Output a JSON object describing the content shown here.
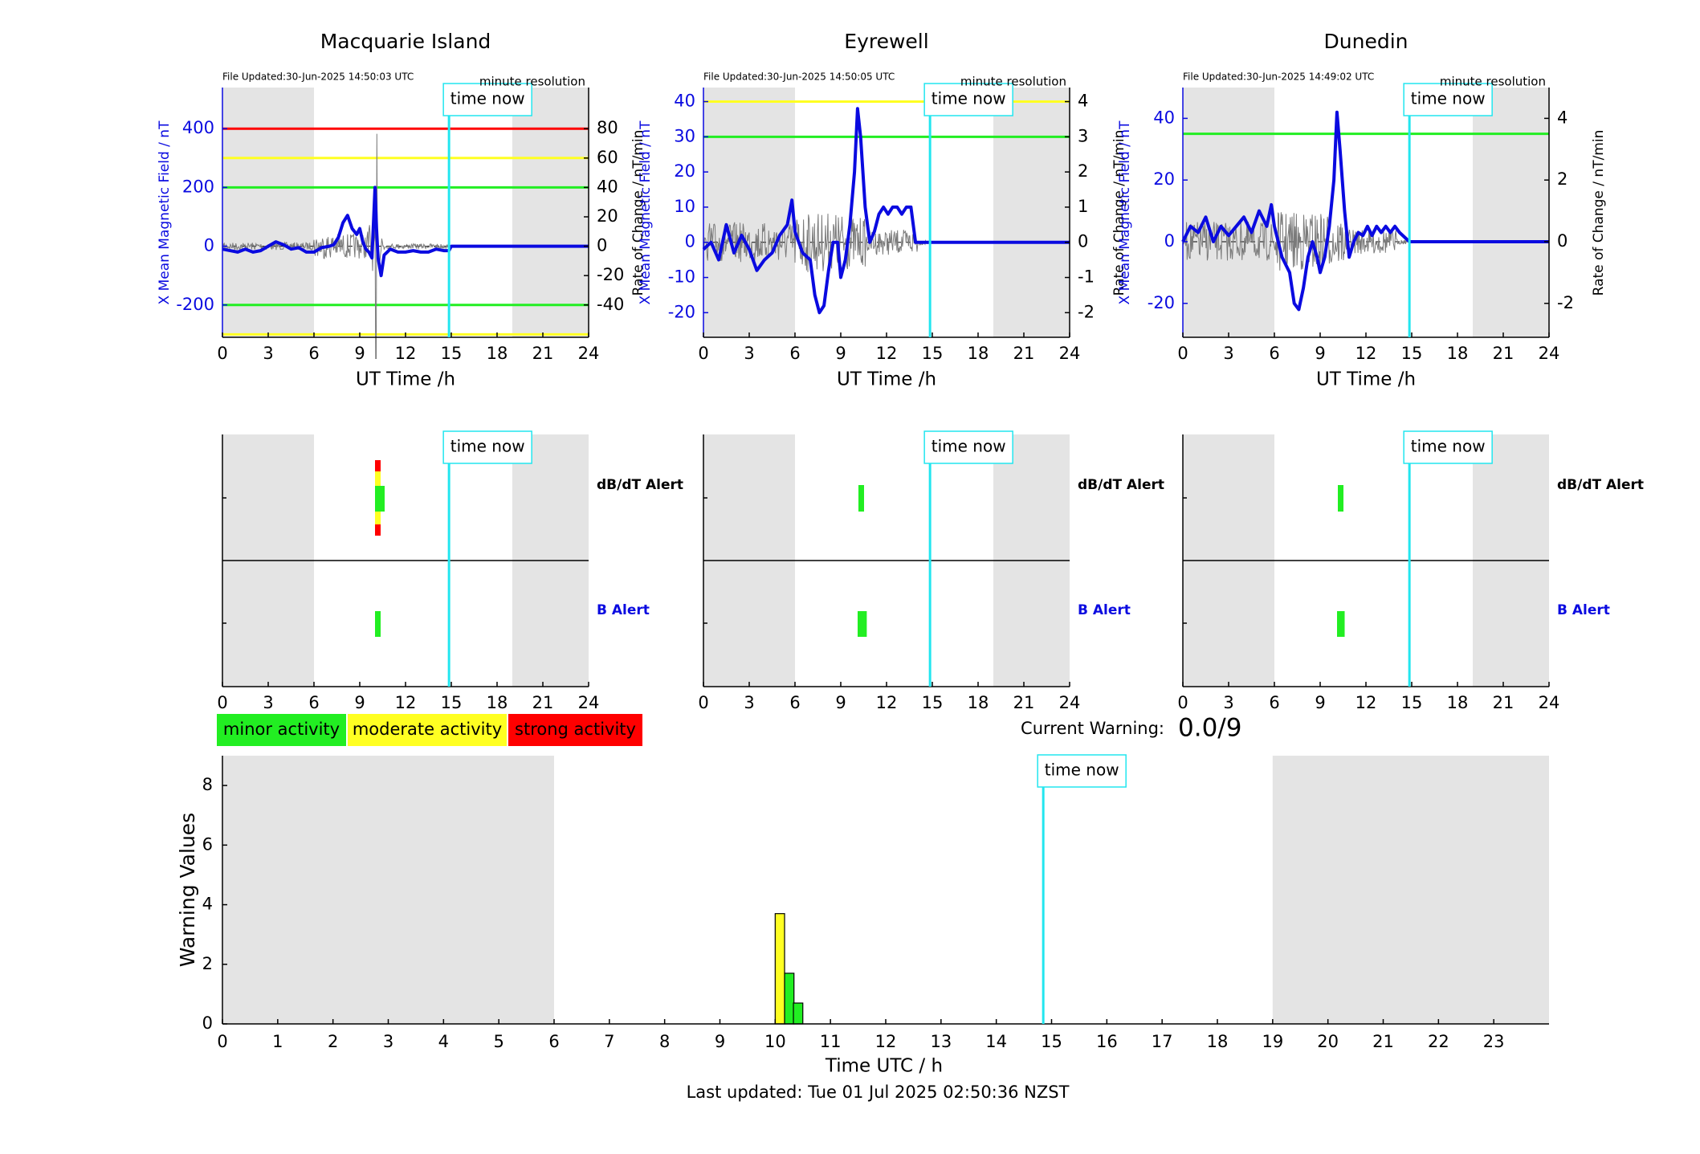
{
  "colors": {
    "blue": "#0a0ae0",
    "cyan": "#22e6ef",
    "red": "#ff0000",
    "yellow": "#ffff22",
    "green": "#22ee22",
    "night": "#e4e4e4",
    "trace": "#7a7a7a"
  },
  "labels": {
    "time_now": "time now",
    "ut_axis": "UT Time /h",
    "y_left": "X Mean Magnetic Field / nT",
    "y_right": "Rate of Change / nT/min",
    "minute_res": "minute resolution",
    "dbdt_alert": "dB/dT Alert",
    "b_alert": "B Alert",
    "current_warning_label": "Current Warning:",
    "current_warning_value": "0.0/9",
    "warning_ylabel": "Warning Values",
    "warning_xlabel": "Time UTC / h",
    "last_updated": "Last updated: Tue 01 Jul 2025 02:50:36 NZST"
  },
  "legend": [
    {
      "label": "minor activity",
      "color": "#22ee22"
    },
    {
      "label": "moderate activity",
      "color": "#ffff22"
    },
    {
      "label": "strong activity",
      "color": "#ff0000"
    }
  ],
  "chart_data": [
    {
      "type": "line",
      "title": "Macquarie Island",
      "file_updated": "File Updated:30-Jun-2025 14:50:03 UTC",
      "xlabel": "UT Time /h",
      "ylabel": "X Mean Magnetic Field / nT",
      "ylabel_right": "Rate of Change / nT/min",
      "xlim": [
        0,
        24
      ],
      "ylim": [
        -310,
        540
      ],
      "ylim_right": [
        -62,
        108
      ],
      "x_ticks": [
        0,
        3,
        6,
        9,
        12,
        15,
        18,
        21,
        24
      ],
      "y_ticks": [
        -200,
        0,
        200,
        400
      ],
      "y_ticks_right": [
        -40,
        -20,
        0,
        20,
        40,
        60,
        80
      ],
      "night_spans": [
        [
          0,
          6
        ],
        [
          19,
          24
        ]
      ],
      "time_now": 14.85,
      "thresholds": [
        {
          "value": 400,
          "color": "#ff0000"
        },
        {
          "value": 300,
          "color": "#ffff22"
        },
        {
          "value": 200,
          "color": "#22ee22"
        },
        {
          "value": -200,
          "color": "#22ee22"
        },
        {
          "value": -300,
          "color": "#ffff22"
        }
      ],
      "series": [
        {
          "x": [
            0,
            0.5,
            1,
            1.5,
            2,
            2.5,
            3,
            3.5,
            4,
            4.5,
            5,
            5.5,
            6,
            6.5,
            7,
            7.3,
            7.6,
            7.9,
            8.2,
            8.5,
            8.8,
            9.0,
            9.2,
            9.4,
            9.6,
            9.8,
            10.0,
            10.1,
            10.2,
            10.4,
            10.6,
            10.8,
            11.0,
            11.5,
            12,
            12.5,
            13,
            13.5,
            14,
            14.5,
            14.85,
            15,
            18,
            21,
            24
          ],
          "y": [
            -10,
            -15,
            -20,
            -10,
            -20,
            -15,
            0,
            15,
            5,
            -10,
            -5,
            -20,
            -20,
            -5,
            0,
            5,
            30,
            80,
            105,
            60,
            40,
            60,
            15,
            -10,
            -20,
            -40,
            200,
            60,
            -40,
            -100,
            -30,
            -20,
            -10,
            -20,
            -20,
            -15,
            -20,
            -20,
            -10,
            -15,
            -15,
            0,
            0,
            0,
            0
          ]
        }
      ],
      "rate_of_change_trace": true
    },
    {
      "type": "line",
      "title": "Eyrewell",
      "file_updated": "File Updated:30-Jun-2025 14:50:05 UTC",
      "xlabel": "UT Time /h",
      "ylabel": "X Mean Magnetic Field / nT",
      "ylabel_right": "Rate of Change / nT/min",
      "xlim": [
        0,
        24
      ],
      "ylim": [
        -27,
        44
      ],
      "ylim_right": [
        -2.7,
        4.4
      ],
      "x_ticks": [
        0,
        3,
        6,
        9,
        12,
        15,
        18,
        21,
        24
      ],
      "y_ticks": [
        -20,
        -10,
        0,
        10,
        20,
        30,
        40
      ],
      "y_ticks_right": [
        -2,
        -1,
        0,
        1,
        2,
        3,
        4
      ],
      "night_spans": [
        [
          0,
          6
        ],
        [
          19,
          24
        ]
      ],
      "time_now": 14.85,
      "thresholds": [
        {
          "value": 40,
          "color": "#ffff22"
        },
        {
          "value": 30,
          "color": "#22ee22"
        }
      ],
      "series": [
        {
          "x": [
            0,
            0.5,
            1,
            1.5,
            2,
            2.5,
            3,
            3.5,
            4,
            4.5,
            5,
            5.5,
            5.8,
            6,
            6.5,
            7,
            7.3,
            7.6,
            7.9,
            8.2,
            8.5,
            8.8,
            9.0,
            9.3,
            9.6,
            9.9,
            10.1,
            10.3,
            10.6,
            10.9,
            11.2,
            11.5,
            11.8,
            12.1,
            12.4,
            12.7,
            13.0,
            13.3,
            13.6,
            13.9,
            14.2,
            14.85,
            15,
            18,
            21,
            24
          ],
          "y": [
            -2,
            0,
            -5,
            5,
            -3,
            2,
            -2,
            -8,
            -5,
            -3,
            2,
            5,
            12,
            3,
            -3,
            -5,
            -15,
            -20,
            -18,
            -8,
            0,
            0,
            -10,
            -5,
            5,
            20,
            38,
            30,
            10,
            0,
            3,
            8,
            10,
            8,
            10,
            10,
            8,
            10,
            10,
            0,
            0,
            0,
            0,
            0,
            0,
            0
          ]
        }
      ],
      "rate_of_change_trace": true
    },
    {
      "type": "line",
      "title": "Dunedin",
      "file_updated": "File Updated:30-Jun-2025 14:49:02 UTC",
      "xlabel": "UT Time /h",
      "ylabel": "X Mean Magnetic Field / nT",
      "ylabel_right": "Rate of Change / nT/min",
      "xlim": [
        0,
        24
      ],
      "ylim": [
        -31,
        50
      ],
      "ylim_right": [
        -3.1,
        5.0
      ],
      "x_ticks": [
        0,
        3,
        6,
        9,
        12,
        15,
        18,
        21,
        24
      ],
      "y_ticks": [
        -20,
        0,
        20,
        40
      ],
      "y_ticks_right": [
        -2,
        0,
        2,
        4
      ],
      "night_spans": [
        [
          0,
          6
        ],
        [
          19,
          24
        ]
      ],
      "time_now": 14.85,
      "thresholds": [
        {
          "value": 35,
          "color": "#22ee22"
        }
      ],
      "series": [
        {
          "x": [
            0,
            0.5,
            1,
            1.5,
            2,
            2.5,
            3,
            3.5,
            4,
            4.5,
            5,
            5.5,
            5.8,
            6,
            6.5,
            7,
            7.3,
            7.6,
            7.9,
            8.2,
            8.5,
            8.8,
            9.0,
            9.3,
            9.6,
            9.9,
            10.1,
            10.3,
            10.6,
            10.9,
            11.2,
            11.5,
            11.8,
            12.1,
            12.4,
            12.7,
            13.0,
            13.3,
            13.6,
            13.9,
            14.2,
            14.85,
            15,
            18,
            21,
            24
          ],
          "y": [
            0,
            5,
            3,
            8,
            0,
            5,
            2,
            5,
            8,
            3,
            10,
            5,
            12,
            5,
            -5,
            -10,
            -20,
            -22,
            -15,
            -5,
            0,
            -5,
            -10,
            -5,
            5,
            20,
            42,
            30,
            10,
            -5,
            0,
            3,
            2,
            5,
            2,
            5,
            3,
            5,
            3,
            5,
            3,
            0,
            0,
            0,
            0,
            0
          ]
        }
      ],
      "rate_of_change_trace": true
    },
    {
      "type": "bar",
      "title": "",
      "panel": "alerts",
      "stations": [
        "Macquarie Island",
        "Eyrewell",
        "Dunedin"
      ],
      "xlim": [
        0,
        24
      ],
      "x_ticks": [
        0,
        3,
        6,
        9,
        12,
        15,
        18,
        21,
        24
      ],
      "rows": [
        "dB/dT Alert",
        "B Alert"
      ],
      "alerts": [
        {
          "dbdt": [
            {
              "start": 10.0,
              "end": 10.25,
              "level": "strong"
            },
            {
              "start": 10.0,
              "end": 10.4,
              "level": "minor"
            }
          ],
          "b": [
            {
              "start": 10.0,
              "end": 10.25,
              "level": "minor"
            }
          ]
        },
        {
          "dbdt": [
            {
              "start": 10.0,
              "end": 10.25,
              "level": "minor"
            }
          ],
          "b": [
            {
              "start": 10.0,
              "end": 10.6,
              "level": "minor"
            }
          ]
        },
        {
          "dbdt": [
            {
              "start": 10.0,
              "end": 10.25,
              "level": "minor"
            }
          ],
          "b": [
            {
              "start": 10.0,
              "end": 10.5,
              "level": "minor"
            }
          ]
        }
      ]
    },
    {
      "type": "bar",
      "title": "",
      "xlabel": "Time UTC / h",
      "ylabel": "Warning Values",
      "xlim": [
        0,
        24
      ],
      "ylim": [
        0,
        9
      ],
      "x_ticks": [
        0,
        1,
        2,
        3,
        4,
        5,
        6,
        7,
        8,
        9,
        10,
        11,
        12,
        13,
        14,
        15,
        16,
        17,
        18,
        19,
        20,
        21,
        22,
        23
      ],
      "y_ticks": [
        0,
        2,
        4,
        6,
        8
      ],
      "night_spans": [
        [
          0,
          6
        ],
        [
          19,
          24
        ]
      ],
      "time_now": 14.85,
      "bars": [
        {
          "x": 10.0,
          "width": 0.17,
          "value": 3.7,
          "level": "moderate"
        },
        {
          "x": 10.17,
          "width": 0.17,
          "value": 1.7,
          "level": "minor"
        },
        {
          "x": 10.33,
          "width": 0.17,
          "value": 0.7,
          "level": "minor"
        }
      ]
    }
  ]
}
